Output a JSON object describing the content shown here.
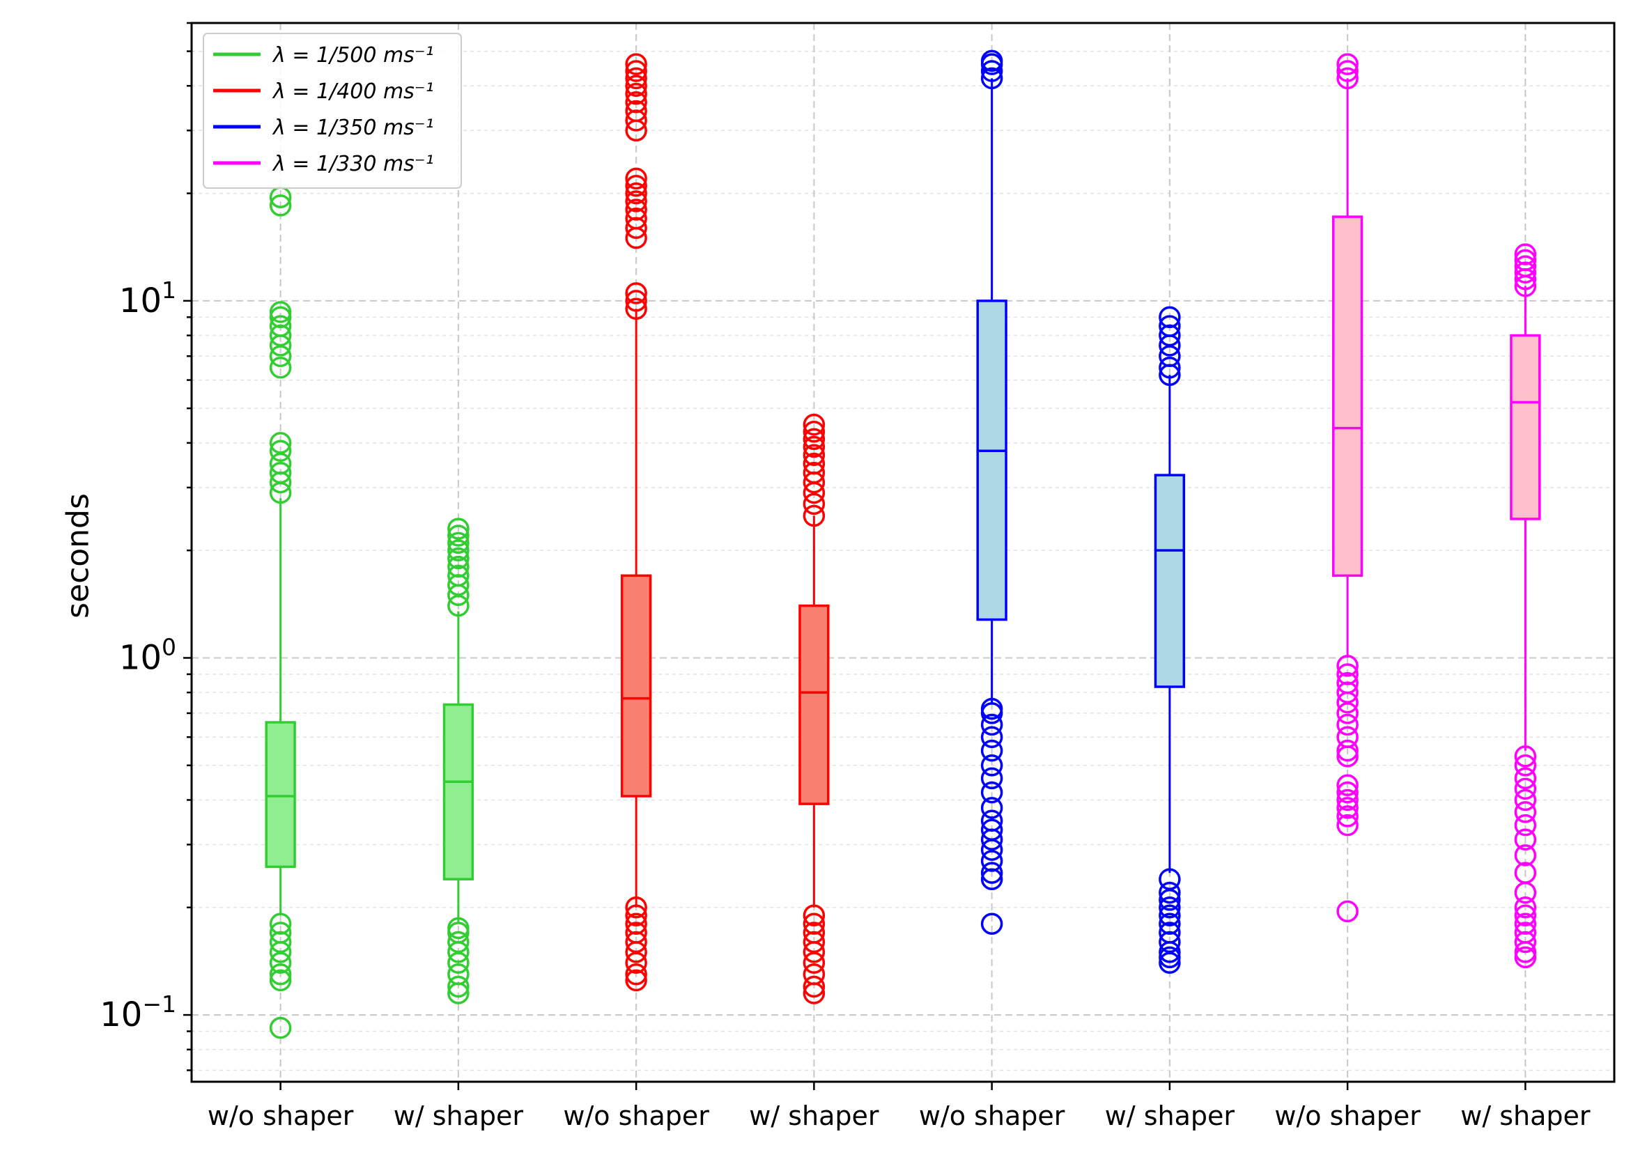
{
  "chart_data": {
    "type": "boxplot",
    "title": "",
    "xlabel": "",
    "ylabel": "seconds",
    "yscale": "log",
    "ylim": [
      0.065,
      60
    ],
    "y_ticks": [
      {
        "value": 0.1,
        "base": "10",
        "exp": "−1"
      },
      {
        "value": 1,
        "base": "10",
        "exp": "0"
      },
      {
        "value": 10,
        "base": "10",
        "exp": "1"
      }
    ],
    "categories": [
      "w/o shaper",
      "w/ shaper",
      "w/o shaper",
      "w/ shaper",
      "w/o shaper",
      "w/ shaper",
      "w/o shaper",
      "w/ shaper"
    ],
    "legend": {
      "position": "top-left",
      "entries": [
        {
          "label": "λ = 1/500 ms⁻¹",
          "color": "#32cd32"
        },
        {
          "label": "λ = 1/400 ms⁻¹",
          "color": "#ff0000"
        },
        {
          "label": "λ = 1/350 ms⁻¹",
          "color": "#0000ff"
        },
        {
          "label": "λ = 1/330 ms⁻¹",
          "color": "#ff00ff"
        }
      ]
    },
    "boxes": [
      {
        "label": "w/o shaper",
        "series": 0,
        "edge": "#32cd32",
        "fill": "#90ee90",
        "q1": 0.26,
        "median": 0.41,
        "q3": 0.66,
        "whislo": 0.19,
        "whishi": 2.8,
        "fliers": [
          0.092,
          0.125,
          0.13,
          0.14,
          0.15,
          0.16,
          0.17,
          0.18,
          2.9,
          3.1,
          3.3,
          3.5,
          3.8,
          4.0,
          6.5,
          7.0,
          7.5,
          8.0,
          8.5,
          9.0,
          9.3,
          18.5,
          19.5
        ]
      },
      {
        "label": "w/ shaper",
        "series": 0,
        "edge": "#32cd32",
        "fill": "#90ee90",
        "q1": 0.24,
        "median": 0.45,
        "q3": 0.74,
        "whislo": 0.18,
        "whishi": 1.35,
        "fliers": [
          0.115,
          0.12,
          0.13,
          0.14,
          0.15,
          0.16,
          0.17,
          0.175,
          1.4,
          1.5,
          1.6,
          1.7,
          1.8,
          1.9,
          2.0,
          2.1,
          2.2,
          2.3
        ]
      },
      {
        "label": "w/o shaper",
        "series": 1,
        "edge": "#ff0000",
        "fill": "#fa8072",
        "q1": 0.41,
        "median": 0.77,
        "q3": 1.7,
        "whislo": 0.2,
        "whishi": 9.5,
        "fliers": [
          0.125,
          0.13,
          0.14,
          0.15,
          0.16,
          0.17,
          0.18,
          0.19,
          0.2,
          9.5,
          10.0,
          10.5,
          15.0,
          16.0,
          17.0,
          18.0,
          19.0,
          20.0,
          21.0,
          22.0,
          30.0,
          32.0,
          34.0,
          36.0,
          38.0,
          40.0,
          42.0,
          44.0,
          46.0
        ]
      },
      {
        "label": "w/ shaper",
        "series": 1,
        "edge": "#ff0000",
        "fill": "#fa8072",
        "q1": 0.39,
        "median": 0.8,
        "q3": 1.4,
        "whislo": 0.2,
        "whishi": 2.5,
        "fliers": [
          0.115,
          0.12,
          0.13,
          0.14,
          0.15,
          0.16,
          0.17,
          0.18,
          0.19,
          2.5,
          2.7,
          2.9,
          3.1,
          3.3,
          3.5,
          3.7,
          3.9,
          4.1,
          4.3,
          4.5
        ]
      },
      {
        "label": "w/o shaper",
        "series": 2,
        "edge": "#0000ff",
        "fill": "#add8e6",
        "q1": 1.28,
        "median": 3.8,
        "q3": 10.0,
        "whislo": 0.75,
        "whishi": 42.0,
        "fliers": [
          0.18,
          0.24,
          0.25,
          0.27,
          0.29,
          0.31,
          0.33,
          0.35,
          0.38,
          0.42,
          0.46,
          0.5,
          0.55,
          0.6,
          0.65,
          0.7,
          0.72,
          42.0,
          44.0,
          46.0,
          47.0
        ]
      },
      {
        "label": "w/ shaper",
        "series": 2,
        "edge": "#0000ff",
        "fill": "#add8e6",
        "q1": 0.83,
        "median": 2.0,
        "q3": 3.25,
        "whislo": 0.25,
        "whishi": 6.2,
        "fliers": [
          0.14,
          0.145,
          0.15,
          0.16,
          0.17,
          0.18,
          0.19,
          0.2,
          0.21,
          0.22,
          0.24,
          6.2,
          6.5,
          7.0,
          7.5,
          8.0,
          8.5,
          9.0
        ]
      },
      {
        "label": "w/o shaper",
        "series": 3,
        "edge": "#ff00ff",
        "fill": "#ffc0cb",
        "q1": 1.7,
        "median": 4.4,
        "q3": 17.2,
        "whislo": 1.0,
        "whishi": 42.0,
        "fliers": [
          0.195,
          0.34,
          0.36,
          0.38,
          0.4,
          0.42,
          0.44,
          0.53,
          0.55,
          0.6,
          0.65,
          0.7,
          0.75,
          0.8,
          0.85,
          0.9,
          0.95,
          42.0,
          44.0,
          46.0
        ]
      },
      {
        "label": "w/ shaper",
        "series": 3,
        "edge": "#ff00ff",
        "fill": "#ffc0cb",
        "q1": 2.45,
        "median": 5.2,
        "q3": 8.0,
        "whislo": 0.55,
        "whishi": 11.0,
        "fliers": [
          0.145,
          0.15,
          0.16,
          0.17,
          0.18,
          0.19,
          0.2,
          0.22,
          0.25,
          0.28,
          0.31,
          0.34,
          0.37,
          0.4,
          0.43,
          0.46,
          0.5,
          0.53,
          11.0,
          11.5,
          12.0,
          12.5,
          13.0,
          13.5
        ]
      }
    ]
  }
}
